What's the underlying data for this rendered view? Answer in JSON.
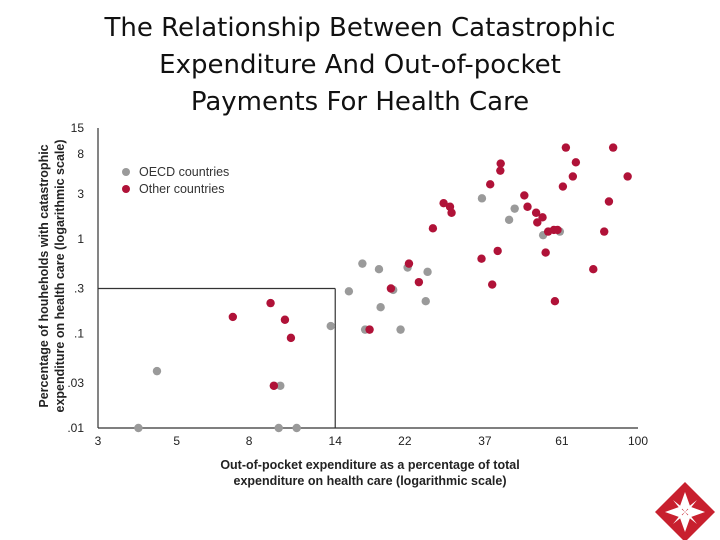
{
  "title_lines": [
    "The Relationship Between Catastrophic",
    "Expenditure And Out-of-pocket",
    "Payments For Health Care"
  ],
  "chart_data": {
    "type": "scatter",
    "title": "",
    "xlabel_lines": [
      "Out-of-pocket expenditure as a percentage of total",
      "expenditure on health care (logarithmic scale)"
    ],
    "ylabel_lines": [
      "Percentage of houheholds with catastrophic",
      "expenditure on health care (logarithmic scale)"
    ],
    "x_scale": "log",
    "y_scale": "log",
    "xlim": [
      3,
      100
    ],
    "ylim": [
      0.01,
      15
    ],
    "x_ticks": [
      3,
      5,
      8,
      14,
      22,
      37,
      61,
      100
    ],
    "x_tick_labels": [
      "3",
      "5",
      "8",
      "14",
      "22",
      "37",
      "61",
      "100"
    ],
    "y_ticks": [
      0.01,
      0.03,
      0.1,
      0.3,
      1,
      3,
      8,
      15
    ],
    "y_tick_labels": [
      ".01",
      ".03",
      ".1",
      ".3",
      "1",
      "3",
      "8",
      "15"
    ],
    "legend_position": "top-left",
    "reference_box": {
      "x_max": 14,
      "y_max": 0.3
    },
    "series": [
      {
        "name": "OECD countries",
        "color": "#9a9a9a",
        "points": [
          [
            3.9,
            0.01
          ],
          [
            4.4,
            0.04
          ],
          [
            9.4,
            0.028
          ],
          [
            9.8,
            0.028
          ],
          [
            9.7,
            0.01
          ],
          [
            10.9,
            0.01
          ],
          [
            13.6,
            0.12
          ],
          [
            15.3,
            0.28
          ],
          [
            16.7,
            0.55
          ],
          [
            17.0,
            0.11
          ],
          [
            18.6,
            0.48
          ],
          [
            18.8,
            0.19
          ],
          [
            20.4,
            0.29
          ],
          [
            21.4,
            0.11
          ],
          [
            22.4,
            0.5
          ],
          [
            25.2,
            0.22
          ],
          [
            25.5,
            0.45
          ],
          [
            36.3,
            2.7
          ],
          [
            43.3,
            1.6
          ],
          [
            44.9,
            2.1
          ],
          [
            54.0,
            1.1
          ],
          [
            60.2,
            1.2
          ]
        ]
      },
      {
        "name": "Other countries",
        "color": "#b01238",
        "points": [
          [
            7.2,
            0.15
          ],
          [
            9.2,
            0.21
          ],
          [
            9.4,
            0.028
          ],
          [
            10.1,
            0.14
          ],
          [
            10.5,
            0.09
          ],
          [
            17.5,
            0.11
          ],
          [
            20.1,
            0.3
          ],
          [
            22.6,
            0.55
          ],
          [
            24.1,
            0.35
          ],
          [
            26.4,
            1.3
          ],
          [
            28.3,
            2.4
          ],
          [
            29.5,
            2.2
          ],
          [
            29.8,
            1.9
          ],
          [
            36.2,
            0.62
          ],
          [
            38.3,
            3.8
          ],
          [
            38.8,
            0.33
          ],
          [
            40.2,
            0.75
          ],
          [
            40.9,
            5.3
          ],
          [
            41.0,
            6.3
          ],
          [
            47.8,
            2.9
          ],
          [
            48.8,
            2.2
          ],
          [
            51.6,
            1.9
          ],
          [
            52.0,
            1.5
          ],
          [
            53.8,
            1.7
          ],
          [
            54.9,
            0.72
          ],
          [
            55.8,
            1.2
          ],
          [
            57.9,
            1.25
          ],
          [
            59.3,
            1.25
          ],
          [
            58.3,
            0.22
          ],
          [
            61.4,
            3.6
          ],
          [
            62.6,
            9.3
          ],
          [
            66.8,
            6.5
          ],
          [
            65.5,
            4.6
          ],
          [
            74.8,
            0.48
          ],
          [
            80.3,
            1.2
          ],
          [
            82.8,
            2.5
          ],
          [
            85.1,
            9.3
          ],
          [
            93.5,
            4.6
          ]
        ]
      }
    ]
  }
}
